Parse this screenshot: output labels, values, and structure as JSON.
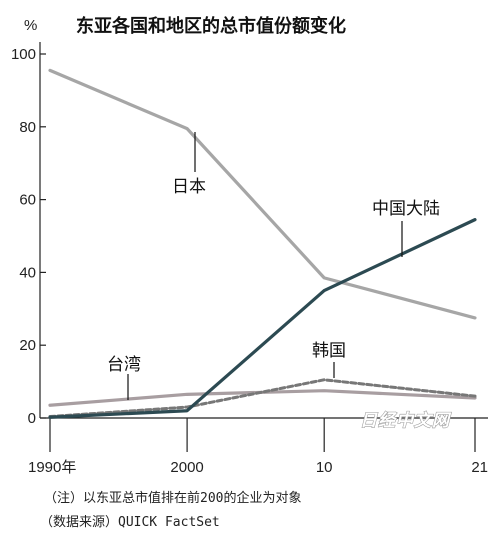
{
  "chart_data": {
    "type": "line",
    "title": "东亚各国和地区的总市值份额变化",
    "y_unit": "%",
    "x_categories": [
      "1990年",
      "2000",
      "10",
      "21"
    ],
    "x_years": [
      1990,
      2000,
      2010,
      2021
    ],
    "ylim": [
      0,
      100
    ],
    "y_ticks": [
      0,
      20,
      40,
      60,
      80,
      100
    ],
    "series": [
      {
        "name": "日本",
        "values": [
          95.5,
          79.5,
          38.5,
          27.5
        ],
        "color": "#a6a6a6",
        "style": "solid"
      },
      {
        "name": "中国大陆",
        "values": [
          0.2,
          2,
          35,
          54.5
        ],
        "color": "#2c4a52",
        "style": "solid"
      },
      {
        "name": "韩国",
        "values": [
          0.4,
          3,
          10.5,
          6
        ],
        "color": "#777777",
        "style": "dashed"
      },
      {
        "name": "台湾",
        "values": [
          3.5,
          6.5,
          7.5,
          5.5
        ],
        "color": "#a89ea1",
        "style": "solid"
      }
    ],
    "grid": false
  },
  "notes": [
    "（注）以东亚总市值排在前200的企业为对象",
    "（数据来源）QUICK FactSet"
  ],
  "watermark": "日经中文网"
}
